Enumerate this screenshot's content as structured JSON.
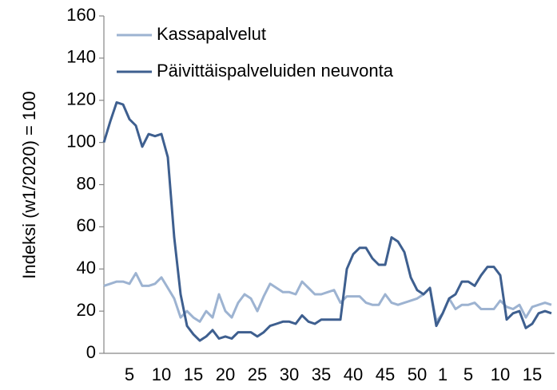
{
  "chart_data": {
    "type": "line",
    "ylabel": "Indeksi (w1/2020) = 100",
    "categories": [
      null,
      null,
      null,
      null,
      "5",
      null,
      null,
      null,
      null,
      "10",
      null,
      null,
      null,
      null,
      "15",
      null,
      null,
      null,
      null,
      "20",
      null,
      null,
      null,
      null,
      "25",
      null,
      null,
      null,
      null,
      "30",
      null,
      null,
      null,
      null,
      "35",
      null,
      null,
      null,
      null,
      "40",
      null,
      null,
      null,
      null,
      "45",
      null,
      null,
      null,
      null,
      "50",
      null,
      null,
      null,
      "1",
      null,
      null,
      null,
      "5",
      null,
      null,
      null,
      null,
      "10",
      null,
      null,
      null,
      null,
      "15",
      null,
      null,
      null
    ],
    "series": [
      {
        "name": "Kassapalvelut",
        "color": "#9db3d1",
        "values": [
          32,
          33,
          34,
          34,
          33,
          38,
          32,
          32,
          33,
          36,
          31,
          26,
          17,
          20,
          17,
          15,
          20,
          17,
          28,
          20,
          17,
          24,
          28,
          26,
          20,
          27,
          33,
          31,
          29,
          29,
          28,
          34,
          31,
          28,
          28,
          29,
          30,
          24,
          27,
          27,
          27,
          24,
          23,
          23,
          28,
          24,
          23,
          24,
          25,
          26,
          28,
          31,
          15,
          19,
          26,
          21,
          23,
          23,
          24,
          21,
          21,
          21,
          25,
          22,
          21,
          23,
          17,
          22,
          23,
          24,
          23
        ]
      },
      {
        "name": "Päivittäispalveluiden neuvonta",
        "color": "#3e5f8f",
        "values": [
          100,
          110,
          119,
          118,
          111,
          108,
          98,
          104,
          103,
          104,
          93,
          55,
          28,
          13,
          9,
          6,
          8,
          11,
          7,
          8,
          7,
          10,
          10,
          10,
          8,
          10,
          13,
          14,
          15,
          15,
          14,
          18,
          15,
          14,
          16,
          16,
          16,
          16,
          40,
          47,
          50,
          50,
          45,
          42,
          42,
          55,
          53,
          48,
          36,
          30,
          28,
          31,
          13,
          19,
          26,
          28,
          34,
          34,
          32,
          37,
          41,
          41,
          37,
          16,
          19,
          20,
          12,
          14,
          19,
          20,
          19
        ]
      }
    ],
    "ylim": [
      0,
      160
    ],
    "yticks": [
      0,
      20,
      40,
      60,
      80,
      100,
      120,
      140,
      160
    ],
    "legend": "upper left"
  }
}
